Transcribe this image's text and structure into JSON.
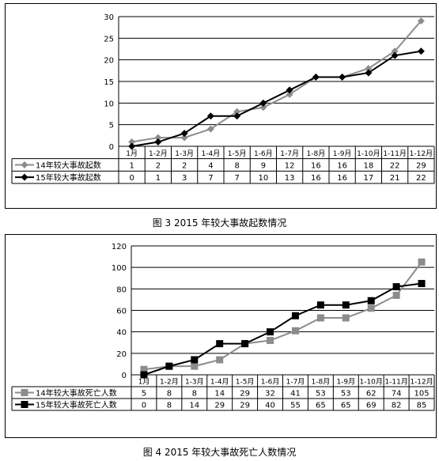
{
  "chart_data": [
    {
      "type": "line",
      "title": "",
      "categories": [
        "1月",
        "1-2月",
        "1-3月",
        "1-4月",
        "1-5月",
        "1-6月",
        "1-7月",
        "1-8月",
        "1-9月",
        "1-10月",
        "1-11月",
        "1-12月"
      ],
      "ylim": [
        0,
        30
      ],
      "yticks": [
        0,
        5,
        10,
        15,
        20,
        25,
        30
      ],
      "grid": true,
      "legend": "bottom-table",
      "series": [
        {
          "name": "14年较大事故起数",
          "values": [
            1,
            2,
            2,
            4,
            8,
            9,
            12,
            16,
            16,
            18,
            22,
            29
          ],
          "color": "#8c8c8c",
          "marker": "diamond"
        },
        {
          "name": "15年较大事故起数",
          "values": [
            0,
            1,
            3,
            7,
            7,
            10,
            13,
            16,
            16,
            17,
            21,
            22
          ],
          "color": "#000000",
          "marker": "diamond"
        }
      ]
    },
    {
      "type": "line",
      "title": "",
      "categories": [
        "1月",
        "1-2月",
        "1-3月",
        "1-4月",
        "1-5月",
        "1-6月",
        "1-7月",
        "1-8月",
        "1-9月",
        "1-10月",
        "1-11月",
        "1-12月"
      ],
      "ylim": [
        0,
        120
      ],
      "yticks": [
        0,
        20,
        40,
        60,
        80,
        100,
        120
      ],
      "grid": true,
      "legend": "bottom-table",
      "series": [
        {
          "name": "14年较大事故死亡人数",
          "values": [
            5,
            8,
            8,
            14,
            29,
            32,
            41,
            53,
            53,
            62,
            74,
            105
          ],
          "color": "#8c8c8c",
          "marker": "square"
        },
        {
          "name": "15年较大事故死亡人数",
          "values": [
            0,
            8,
            14,
            29,
            29,
            40,
            55,
            65,
            65,
            69,
            82,
            85
          ],
          "color": "#000000",
          "marker": "square"
        }
      ]
    }
  ],
  "captions": {
    "fig3": "图 3   2015 年较大事故起数情况",
    "fig4": "图 4   2015 年较大事故死亡人数情况"
  }
}
